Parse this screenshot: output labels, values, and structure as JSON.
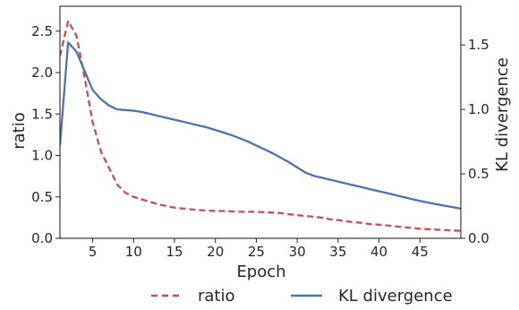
{
  "chart_data": {
    "type": "line",
    "title": "",
    "xlabel": "Epoch",
    "ylabel_left": "ratio",
    "ylabel_right": "KL divergence",
    "xlim": [
      1,
      50
    ],
    "ylim_left": [
      0,
      2.8
    ],
    "ylim_right": [
      0,
      1.8
    ],
    "x_ticks": [
      5,
      10,
      15,
      20,
      25,
      30,
      35,
      40,
      45
    ],
    "y_ticks_left": [
      0.0,
      0.5,
      1.0,
      1.5,
      2.0,
      2.5
    ],
    "y_ticks_left_labels": [
      "0.0",
      "0.5",
      "1.0",
      "1.5",
      "2.0",
      "2.5"
    ],
    "y_ticks_right": [
      0.0,
      0.5,
      1.0,
      1.5
    ],
    "y_ticks_right_labels": [
      "0.0",
      "0.5",
      "1.0",
      "1.5"
    ],
    "grid": false,
    "legend_position": "bottom-center",
    "x": [
      1,
      2,
      3,
      4,
      5,
      6,
      7,
      8,
      9,
      10,
      11,
      12,
      13,
      14,
      15,
      16,
      17,
      18,
      19,
      20,
      21,
      22,
      23,
      24,
      25,
      26,
      27,
      28,
      29,
      30,
      31,
      32,
      33,
      34,
      35,
      36,
      37,
      38,
      39,
      40,
      41,
      42,
      43,
      44,
      45,
      46,
      47,
      48,
      49,
      50
    ],
    "series": [
      {
        "name": "ratio",
        "axis": "left",
        "color": "#c44e52",
        "linestyle": "dashed",
        "values": [
          2.2,
          2.62,
          2.45,
          1.95,
          1.4,
          1.05,
          0.85,
          0.65,
          0.55,
          0.5,
          0.47,
          0.44,
          0.41,
          0.39,
          0.37,
          0.36,
          0.35,
          0.34,
          0.335,
          0.33,
          0.33,
          0.325,
          0.32,
          0.32,
          0.32,
          0.315,
          0.31,
          0.305,
          0.29,
          0.28,
          0.27,
          0.26,
          0.25,
          0.23,
          0.22,
          0.205,
          0.195,
          0.185,
          0.17,
          0.165,
          0.155,
          0.145,
          0.135,
          0.125,
          0.115,
          0.11,
          0.105,
          0.1,
          0.095,
          0.09
        ]
      },
      {
        "name": "KL divergence",
        "axis": "right",
        "color": "#4c72b0",
        "linestyle": "solid",
        "values": [
          0.72,
          1.52,
          1.45,
          1.3,
          1.15,
          1.08,
          1.03,
          1.0,
          0.995,
          0.99,
          0.98,
          0.965,
          0.95,
          0.935,
          0.92,
          0.905,
          0.89,
          0.875,
          0.86,
          0.84,
          0.82,
          0.8,
          0.775,
          0.75,
          0.72,
          0.69,
          0.66,
          0.625,
          0.59,
          0.55,
          0.51,
          0.485,
          0.47,
          0.455,
          0.44,
          0.425,
          0.41,
          0.395,
          0.38,
          0.365,
          0.35,
          0.335,
          0.32,
          0.305,
          0.29,
          0.277,
          0.265,
          0.253,
          0.242,
          0.23
        ]
      }
    ]
  }
}
